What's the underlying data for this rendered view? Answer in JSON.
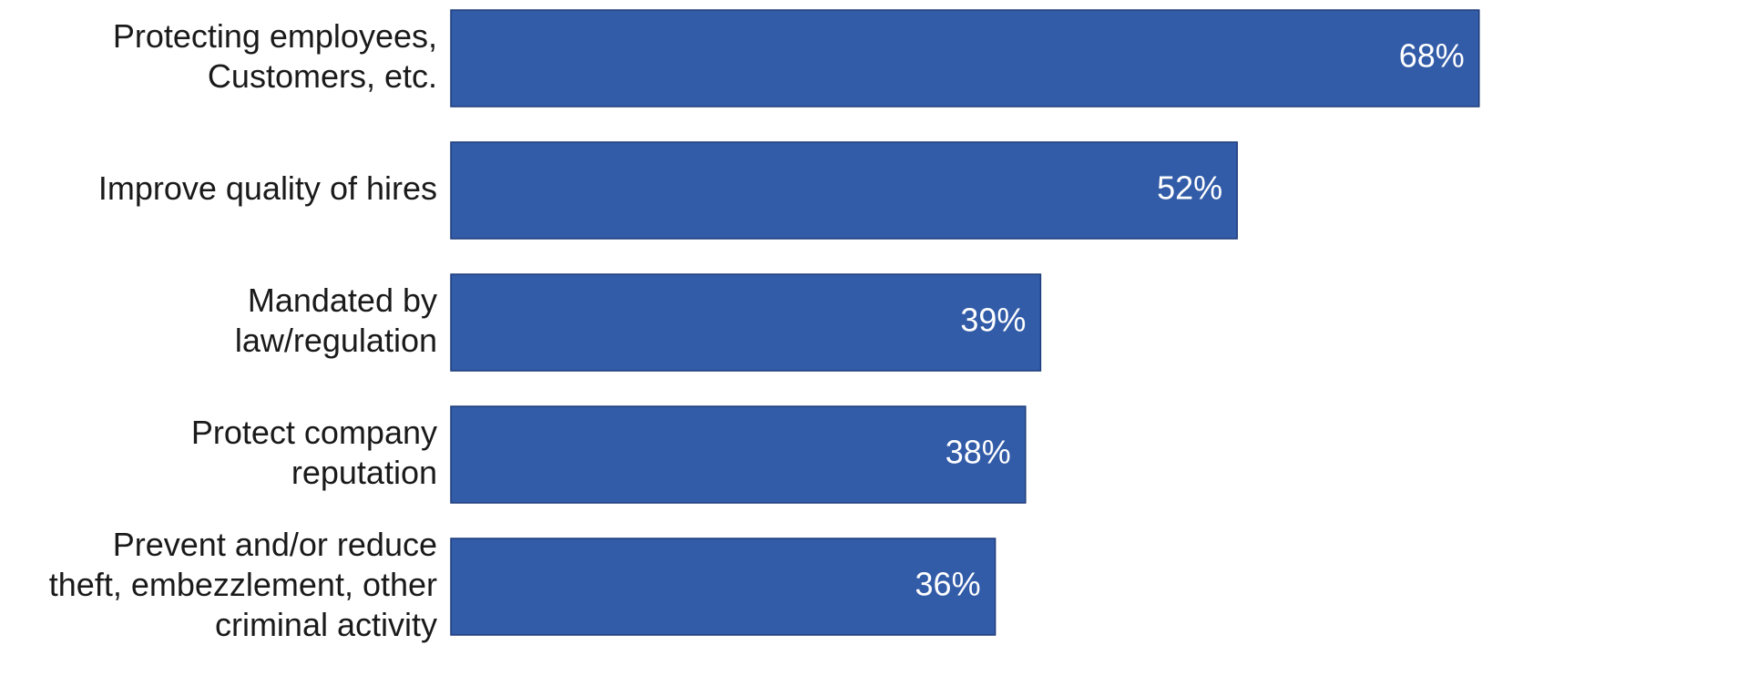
{
  "chart_data": {
    "type": "barh",
    "categories": [
      "Protecting employees,\nCustomers, etc.",
      "Improve quality of hires",
      "Mandated by\nlaw/regulation",
      "Protect company\nreputation",
      "Prevent and/or reduce\ntheft, embezzlement, other\ncriminal activity"
    ],
    "values": [
      68,
      52,
      39,
      38,
      36
    ],
    "value_labels": [
      "68%",
      "52%",
      "39%",
      "38%",
      "36%"
    ],
    "color": "#325ca8"
  }
}
